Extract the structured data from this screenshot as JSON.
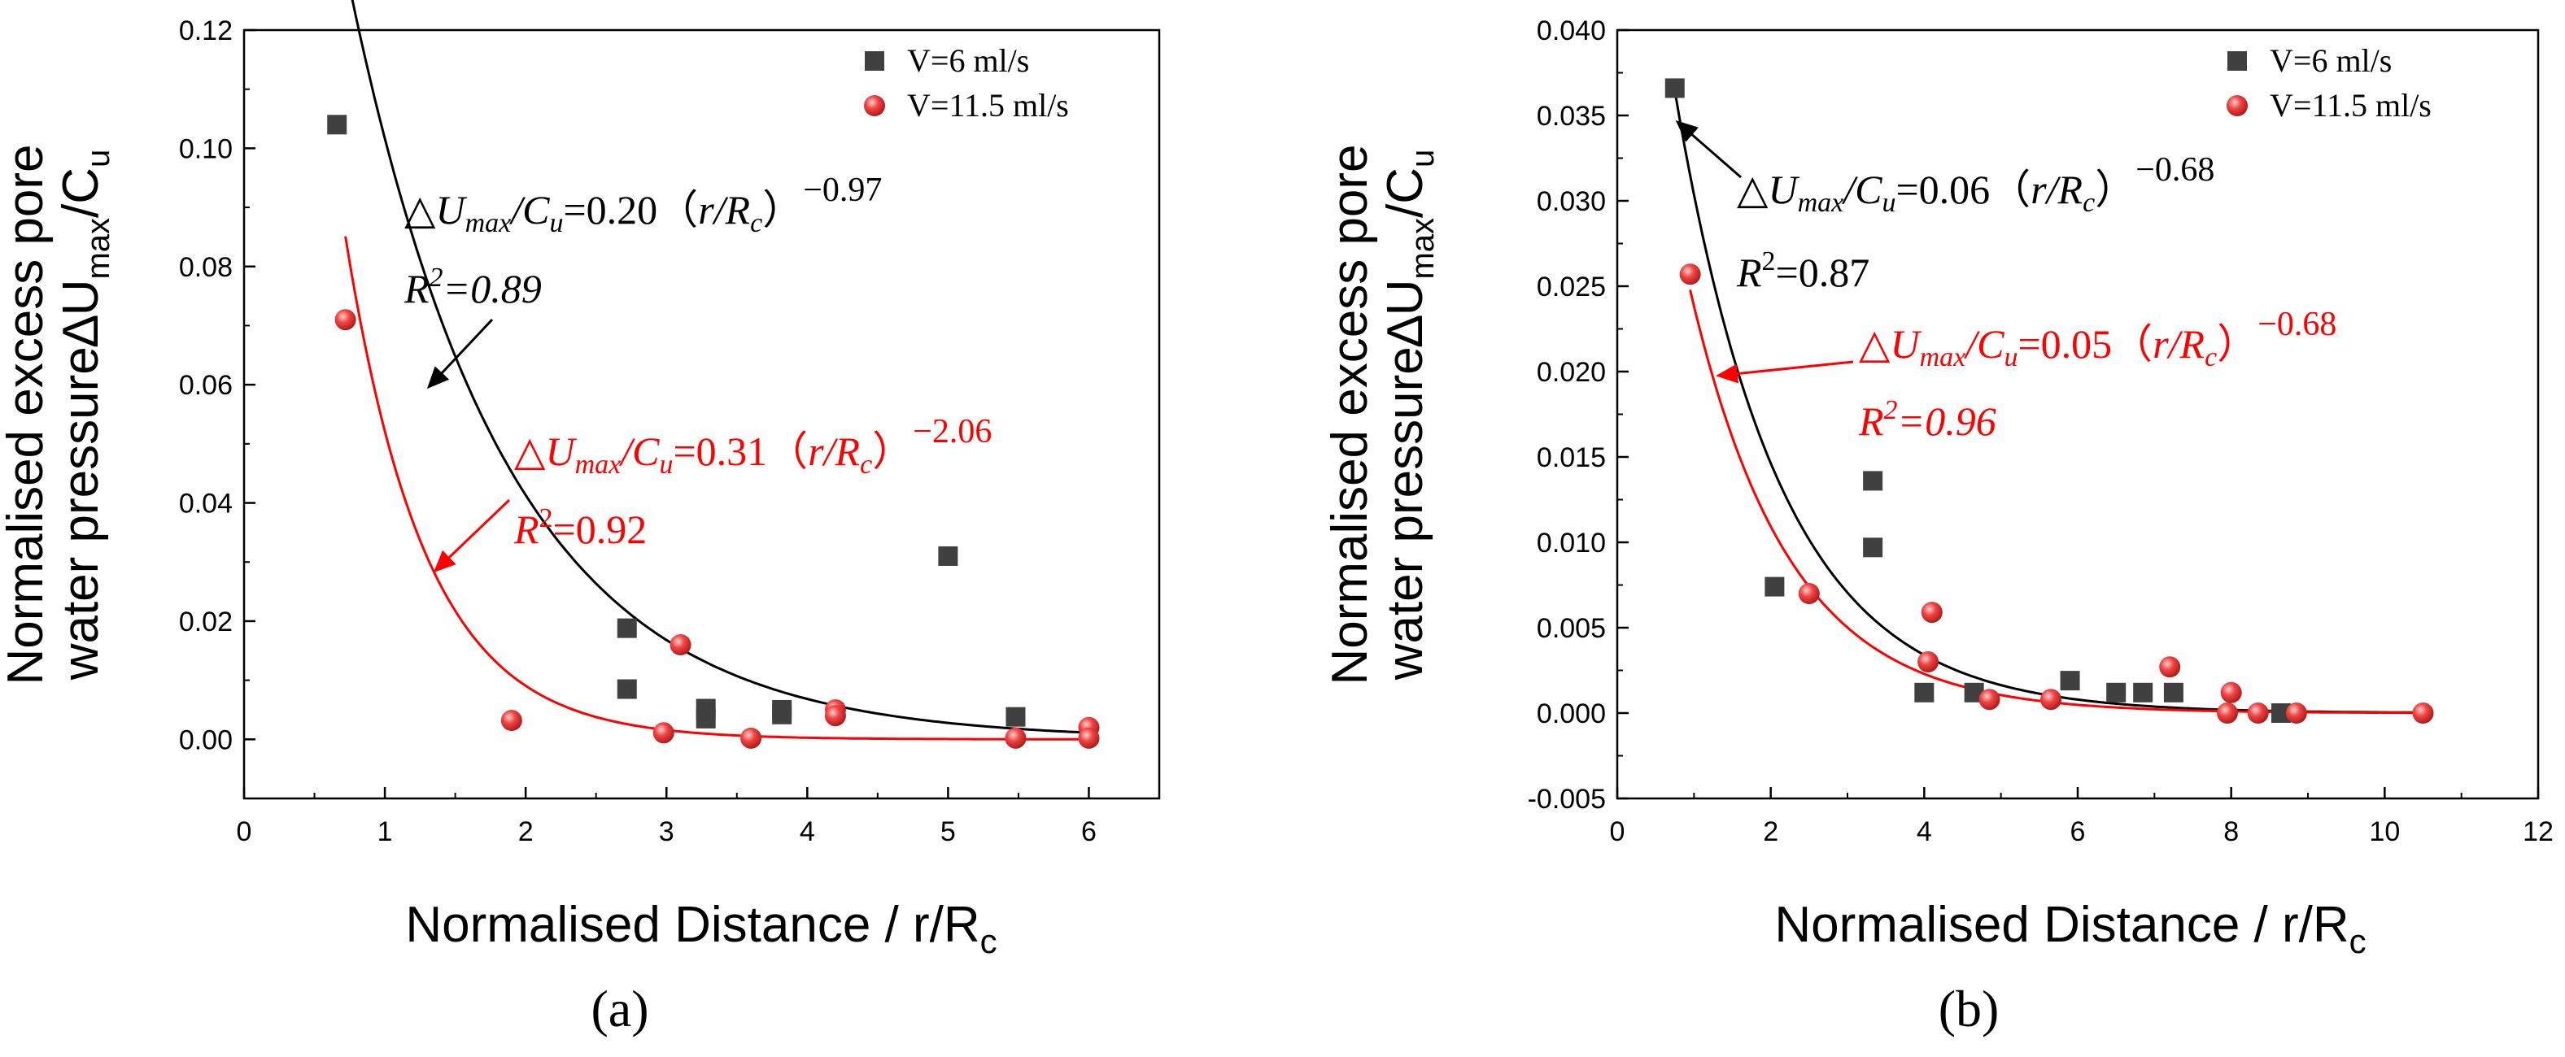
{
  "chart_data": [
    {
      "type": "scatter",
      "panel_label": "(a)",
      "xlabel_text": "Normalised Distance / r/R",
      "xlabel_sub": "c",
      "ylabel_line1": "Normalised excess pore",
      "ylabel_line2_text": "water pressure∆U",
      "ylabel_line2_sub1": "max",
      "ylabel_line2_mid": "/C",
      "ylabel_line2_sub2": "u",
      "xlim": [
        0,
        6.5
      ],
      "ylim": [
        -0.01,
        0.12
      ],
      "xticks": [
        0,
        1,
        2,
        3,
        4,
        5,
        6
      ],
      "yticks": [
        0.0,
        0.02,
        0.04,
        0.06,
        0.08,
        0.1,
        0.12
      ],
      "ytick_labels": [
        "0.00",
        "0.02",
        "0.04",
        "0.06",
        "0.08",
        "0.10",
        "0.12"
      ],
      "series": [
        {
          "name": "V=6 ml/s",
          "marker": "square",
          "color": "#404040",
          "x": [
            0.66,
            2.72,
            2.72,
            3.28,
            3.28,
            3.82,
            3.82,
            5.0,
            5.48
          ],
          "y": [
            0.104,
            0.0188,
            0.0085,
            0.0052,
            0.0035,
            0.005,
            0.0042,
            0.031,
            0.0038
          ]
        },
        {
          "name": "V=11.5 ml/s",
          "marker": "circle",
          "color": "#e23b3b",
          "x": [
            0.72,
            1.9,
            2.98,
            3.1,
            3.6,
            4.2,
            4.2,
            5.48,
            6.0,
            6.0
          ],
          "y": [
            0.071,
            0.0032,
            0.0011,
            0.016,
            0.0002,
            0.005,
            0.004,
            0.0002,
            0.002,
            0.0002
          ]
        }
      ],
      "fits": [
        {
          "color": "#000000",
          "x_start": 0.66,
          "x_end": 6.0,
          "a": 0.25,
          "b": 0.9,
          "c": 0.0
        },
        {
          "color": "#ff0000",
          "x_start": 0.72,
          "x_end": 6.0,
          "a": 0.3,
          "b": 1.75,
          "c": 0.0
        }
      ],
      "annotations": [
        {
          "color": "#000000",
          "prefix": "△",
          "u": "U",
          "usub": "max",
          "slash": "/",
          "c": "C",
          "csub": "u",
          "eq": "=0.20（",
          "r": "r/R",
          "rsub": "c",
          "close": "）",
          "exp": "−0.97",
          "r2_italic": true,
          "r2_r": "R",
          "r2_sup": "2",
          "r2_val": "=0.89"
        },
        {
          "color": "#ff0000",
          "prefix": "△",
          "u": "U",
          "usub": "max",
          "slash": "/",
          "c": "C",
          "csub": "u",
          "eq": "=0.31（",
          "r": "r/R",
          "rsub": "c",
          "close": "）",
          "exp": "−2.06",
          "r2_italic": false,
          "r2_r": "R",
          "r2_sup": "2",
          "r2_val": "=0.92"
        }
      ]
    },
    {
      "type": "scatter",
      "panel_label": "(b)",
      "xlabel_text": "Normalised Distance / r/R",
      "xlabel_sub": "c",
      "ylabel_line1": "Normalised excess pore",
      "ylabel_line2_text": "water pressure∆U",
      "ylabel_line2_sub1": "max",
      "ylabel_line2_mid": "/C",
      "ylabel_line2_sub2": "u",
      "xlim": [
        0,
        12
      ],
      "ylim": [
        -0.005,
        0.04
      ],
      "xticks": [
        0,
        2,
        4,
        6,
        8,
        10,
        12
      ],
      "yticks": [
        -0.005,
        0.0,
        0.005,
        0.01,
        0.015,
        0.02,
        0.025,
        0.03,
        0.035,
        0.04
      ],
      "ytick_labels": [
        "-0.005",
        "0.000",
        "0.005",
        "0.010",
        "0.015",
        "0.020",
        "0.025",
        "0.030",
        "0.035",
        "0.040"
      ],
      "series": [
        {
          "name": "V=6 ml/s",
          "marker": "square",
          "color": "#404040",
          "x": [
            0.75,
            2.05,
            3.33,
            3.33,
            4.0,
            4.65,
            5.9,
            6.5,
            6.85,
            7.25,
            8.65
          ],
          "y": [
            0.0366,
            0.0074,
            0.0136,
            0.0097,
            0.0012,
            0.0012,
            0.0019,
            0.0012,
            0.0012,
            0.0012,
            0.0
          ]
        },
        {
          "name": "V=11.5 ml/s",
          "marker": "circle",
          "color": "#e23b3b",
          "x": [
            0.95,
            2.5,
            4.05,
            4.1,
            4.85,
            5.65,
            7.2,
            7.95,
            8.0,
            8.35,
            8.85,
            10.5
          ],
          "y": [
            0.0257,
            0.007,
            0.003,
            0.0059,
            0.0008,
            0.0008,
            0.0027,
            0.0,
            0.0012,
            0.0,
            0.0,
            0.0
          ]
        }
      ],
      "fits": [
        {
          "color": "#000000",
          "x_start": 0.75,
          "x_end": 10.5,
          "a": 0.063,
          "b": 0.73,
          "c": 0.0
        },
        {
          "color": "#ff0000",
          "x_start": 0.95,
          "x_end": 10.5,
          "a": 0.052,
          "b": 0.78,
          "c": 0.0
        }
      ],
      "annotations": [
        {
          "color": "#000000",
          "prefix": "△",
          "u": "U",
          "usub": "max",
          "slash": "/",
          "c": "C",
          "csub": "u",
          "eq": "=0.06（",
          "r": "r/R",
          "rsub": "c",
          "close": "）",
          "exp": "−0.68",
          "r2_italic": false,
          "r2_r": "R",
          "r2_sup": "2",
          "r2_val": "=0.87"
        },
        {
          "color": "#ff0000",
          "prefix": "△",
          "u": "U",
          "usub": "max",
          "slash": "/",
          "c": "C",
          "csub": "u",
          "eq": "=0.05（",
          "r": "r/R",
          "rsub": "c",
          "close": "）",
          "exp": "−0.68",
          "r2_italic": true,
          "r2_r": "R",
          "r2_sup": "2",
          "r2_val": "=0.96"
        }
      ]
    }
  ]
}
